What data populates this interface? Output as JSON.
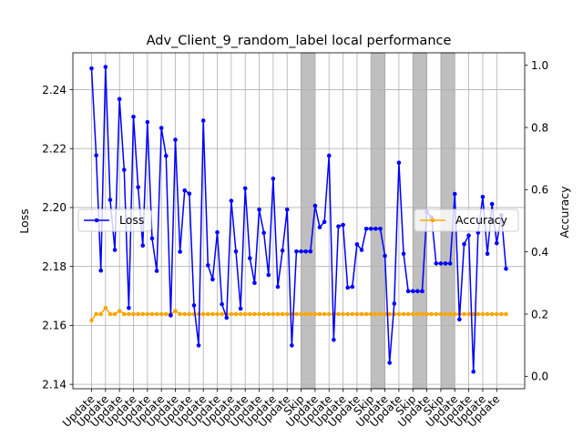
{
  "chart_data": {
    "type": "line",
    "title": "Adv_Client_9_random_label local performance",
    "xlabel": "",
    "ylabel_left": "Loss",
    "ylabel_right": "Accuracy",
    "ylim_left": [
      2.1385,
      2.2525
    ],
    "ylim_right": [
      -0.04,
      1.04
    ],
    "yticks_left": [
      "2.14",
      "2.16",
      "2.18",
      "2.20",
      "2.22",
      "2.24"
    ],
    "yticks_right": [
      "0.0",
      "0.2",
      "0.4",
      "0.6",
      "0.8",
      "1.0"
    ],
    "grid": true,
    "x_tick_labels": [
      "Update",
      "Update",
      "Update",
      "Update",
      "Update",
      "Update",
      "Update",
      "Update",
      "Update",
      "Update",
      "Update",
      "Update",
      "Update",
      "Update",
      "Update",
      "Skip",
      "Update",
      "Update",
      "Update",
      "Update",
      "Skip",
      "Update",
      "Update",
      "Skip",
      "Update",
      "Skip",
      "Update",
      "Update",
      "Update",
      "Update"
    ],
    "skip_rounds": [
      [
        45,
        48
      ],
      [
        60,
        63
      ],
      [
        69,
        72
      ],
      [
        75,
        78
      ]
    ],
    "series": [
      {
        "name": "Loss",
        "axis": "left",
        "color": "#0000ff",
        "legend_position": "center-left",
        "values": [
          2.2472,
          2.2177,
          2.1786,
          2.2477,
          2.2026,
          2.1856,
          2.2368,
          2.2128,
          2.1659,
          2.2308,
          2.2069,
          2.1871,
          2.229,
          2.1895,
          2.1785,
          2.227,
          2.2175,
          2.1634,
          2.223,
          2.185,
          2.2058,
          2.2047,
          2.1668,
          2.1532,
          2.2295,
          2.1804,
          2.1756,
          2.1916,
          2.1672,
          2.1626,
          2.2023,
          2.1851,
          2.1657,
          2.2065,
          2.1828,
          2.1744,
          2.1993,
          2.1914,
          2.1771,
          2.2098,
          2.1731,
          2.1854,
          2.1993,
          2.1532,
          2.1851,
          2.1851,
          2.1851,
          2.1851,
          2.2006,
          2.1933,
          2.1951,
          2.2176,
          2.1551,
          2.1936,
          2.1941,
          2.1728,
          2.1731,
          2.1875,
          2.1856,
          2.1928,
          2.1928,
          2.1928,
          2.1928,
          2.1836,
          2.1473,
          2.1674,
          2.2152,
          2.1843,
          2.1716,
          2.1716,
          2.1716,
          2.1716,
          2.1985,
          2.1967,
          2.181,
          2.181,
          2.181,
          2.181,
          2.2046,
          2.162,
          2.1876,
          2.1905,
          2.1443,
          2.1915,
          2.2036,
          2.1843,
          2.2012,
          2.1879,
          2.1974,
          2.1792
        ]
      },
      {
        "name": "Accuracy",
        "axis": "right",
        "color": "#ffa500",
        "legend_position": "center-right",
        "values": [
          0.18,
          0.2,
          0.2,
          0.22,
          0.2,
          0.2,
          0.21,
          0.2,
          0.2,
          0.2,
          0.2,
          0.2,
          0.2,
          0.2,
          0.2,
          0.2,
          0.2,
          0.2,
          0.21,
          0.2,
          0.2,
          0.2,
          0.2,
          0.2,
          0.2,
          0.2,
          0.2,
          0.2,
          0.2,
          0.2,
          0.2,
          0.2,
          0.2,
          0.2,
          0.2,
          0.2,
          0.2,
          0.2,
          0.2,
          0.2,
          0.2,
          0.2,
          0.2,
          0.2,
          0.2,
          0.2,
          0.2,
          0.2,
          0.2,
          0.2,
          0.2,
          0.2,
          0.2,
          0.2,
          0.2,
          0.2,
          0.2,
          0.2,
          0.2,
          0.2,
          0.2,
          0.2,
          0.2,
          0.2,
          0.2,
          0.2,
          0.2,
          0.2,
          0.2,
          0.2,
          0.2,
          0.2,
          0.2,
          0.2,
          0.2,
          0.2,
          0.2,
          0.2,
          0.2,
          0.2,
          0.2,
          0.2,
          0.2,
          0.2,
          0.2,
          0.2,
          0.2,
          0.2,
          0.2,
          0.2
        ]
      }
    ]
  }
}
